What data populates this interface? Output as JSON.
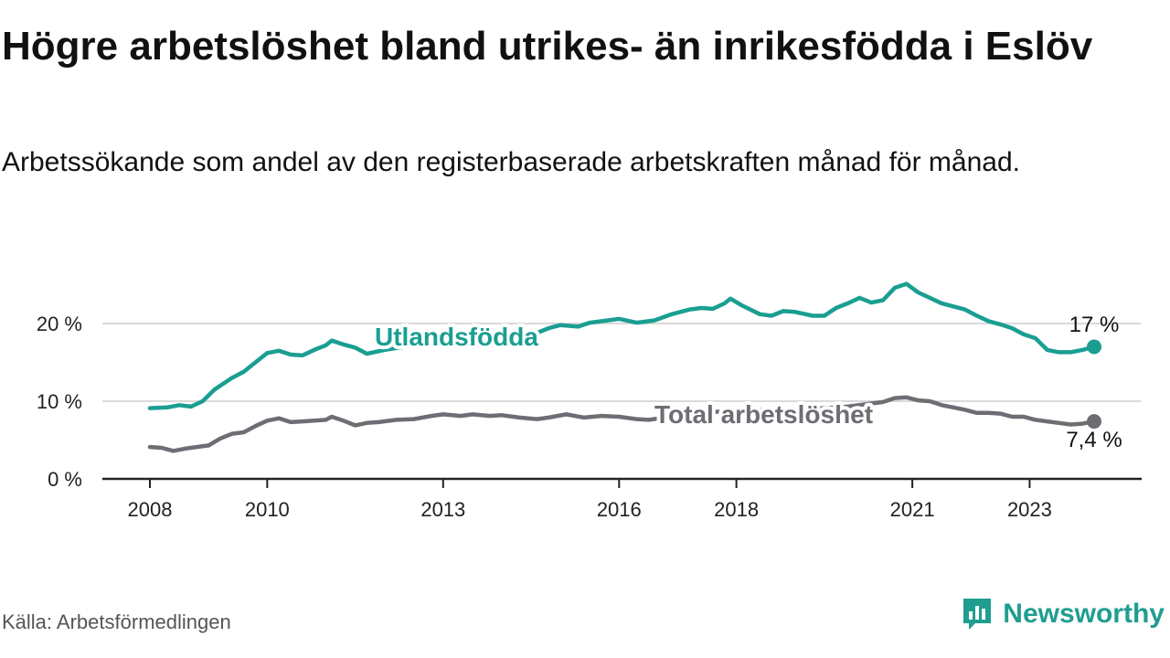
{
  "title": "Högre arbetslöshet bland utrikes- än inrikesfödda i Eslöv",
  "subtitle": "Arbetssökande som andel av den registerbaserade arbetskraften månad för månad.",
  "source": "Källa: Arbetsförmedlingen",
  "brand": {
    "name": "Newsworthy",
    "logo_icon": "newsworthy-logo-icon",
    "color": "#1f9e90"
  },
  "colors": {
    "utlandsfodda": "#1a9e92",
    "total": "#6f6c73",
    "grid": "#d9d9d9",
    "axis": "#222222"
  },
  "chart_data": {
    "type": "line",
    "title": "Högre arbetslöshet bland utrikes- än inrikesfödda i Eslöv",
    "xlabel": "",
    "ylabel": "",
    "xlim": [
      2007.8,
      2025.3
    ],
    "ylim": [
      0,
      25
    ],
    "x_ticks": [
      2008,
      2010,
      2013,
      2016,
      2018,
      2021,
      2023
    ],
    "x_tick_labels": [
      "2008",
      "2010",
      "2013",
      "2016",
      "2018",
      "2021",
      "2023"
    ],
    "y_ticks": [
      0,
      10,
      20
    ],
    "y_tick_labels": [
      "0 %",
      "10 %",
      "20 %"
    ],
    "series": [
      {
        "name": "Utlandsfödda",
        "end_label": "17 %",
        "points": [
          [
            2008.0,
            9.1
          ],
          [
            2008.3,
            9.2
          ],
          [
            2008.5,
            9.5
          ],
          [
            2008.7,
            9.3
          ],
          [
            2008.9,
            10.0
          ],
          [
            2009.1,
            11.5
          ],
          [
            2009.4,
            13.0
          ],
          [
            2009.6,
            13.8
          ],
          [
            2009.8,
            15.0
          ],
          [
            2010.0,
            16.2
          ],
          [
            2010.2,
            16.5
          ],
          [
            2010.4,
            16.0
          ],
          [
            2010.6,
            15.9
          ],
          [
            2010.8,
            16.6
          ],
          [
            2011.0,
            17.2
          ],
          [
            2011.1,
            17.8
          ],
          [
            2011.3,
            17.3
          ],
          [
            2011.5,
            16.9
          ],
          [
            2011.7,
            16.1
          ],
          [
            2012.0,
            16.6
          ],
          [
            2012.5,
            17.2
          ],
          [
            2013.0,
            17.6
          ],
          [
            2013.5,
            17.9
          ],
          [
            2014.0,
            18.2
          ],
          [
            2014.5,
            18.5
          ],
          [
            2014.8,
            19.4
          ],
          [
            2015.0,
            19.8
          ],
          [
            2015.3,
            19.6
          ],
          [
            2015.5,
            20.1
          ],
          [
            2015.8,
            20.4
          ],
          [
            2016.0,
            20.6
          ],
          [
            2016.3,
            20.1
          ],
          [
            2016.6,
            20.4
          ],
          [
            2016.9,
            21.2
          ],
          [
            2017.2,
            21.8
          ],
          [
            2017.4,
            22.0
          ],
          [
            2017.6,
            21.9
          ],
          [
            2017.8,
            22.6
          ],
          [
            2017.9,
            23.2
          ],
          [
            2018.1,
            22.3
          ],
          [
            2018.4,
            21.2
          ],
          [
            2018.6,
            21.0
          ],
          [
            2018.8,
            21.6
          ],
          [
            2019.0,
            21.5
          ],
          [
            2019.3,
            21.0
          ],
          [
            2019.5,
            21.0
          ],
          [
            2019.7,
            22.0
          ],
          [
            2019.9,
            22.6
          ],
          [
            2020.1,
            23.3
          ],
          [
            2020.3,
            22.7
          ],
          [
            2020.5,
            23.0
          ],
          [
            2020.7,
            24.6
          ],
          [
            2020.9,
            25.1
          ],
          [
            2021.1,
            24.0
          ],
          [
            2021.3,
            23.3
          ],
          [
            2021.5,
            22.6
          ],
          [
            2021.7,
            22.2
          ],
          [
            2021.9,
            21.8
          ],
          [
            2022.1,
            21.0
          ],
          [
            2022.3,
            20.3
          ],
          [
            2022.5,
            19.9
          ],
          [
            2022.7,
            19.4
          ],
          [
            2022.9,
            18.6
          ],
          [
            2023.1,
            18.1
          ],
          [
            2023.3,
            16.6
          ],
          [
            2023.5,
            16.3
          ],
          [
            2023.7,
            16.3
          ],
          [
            2023.9,
            16.6
          ],
          [
            2024.1,
            17.0
          ]
        ]
      },
      {
        "name": "Total arbetslöshet",
        "end_label": "7,4 %",
        "points": [
          [
            2008.0,
            4.1
          ],
          [
            2008.2,
            4.0
          ],
          [
            2008.4,
            3.6
          ],
          [
            2008.6,
            3.9
          ],
          [
            2008.8,
            4.1
          ],
          [
            2009.0,
            4.3
          ],
          [
            2009.2,
            5.2
          ],
          [
            2009.4,
            5.8
          ],
          [
            2009.6,
            6.0
          ],
          [
            2009.8,
            6.8
          ],
          [
            2010.0,
            7.5
          ],
          [
            2010.2,
            7.8
          ],
          [
            2010.4,
            7.3
          ],
          [
            2010.6,
            7.4
          ],
          [
            2010.8,
            7.5
          ],
          [
            2011.0,
            7.6
          ],
          [
            2011.1,
            8.0
          ],
          [
            2011.3,
            7.5
          ],
          [
            2011.5,
            6.9
          ],
          [
            2011.7,
            7.2
          ],
          [
            2011.9,
            7.3
          ],
          [
            2012.2,
            7.6
          ],
          [
            2012.5,
            7.7
          ],
          [
            2012.8,
            8.1
          ],
          [
            2013.0,
            8.3
          ],
          [
            2013.3,
            8.1
          ],
          [
            2013.5,
            8.3
          ],
          [
            2013.8,
            8.1
          ],
          [
            2014.0,
            8.2
          ],
          [
            2014.3,
            7.9
          ],
          [
            2014.6,
            7.7
          ],
          [
            2014.8,
            7.9
          ],
          [
            2015.1,
            8.3
          ],
          [
            2015.4,
            7.9
          ],
          [
            2015.7,
            8.1
          ],
          [
            2016.0,
            8.0
          ],
          [
            2016.3,
            7.7
          ],
          [
            2016.5,
            7.6
          ],
          [
            2016.8,
            7.9
          ],
          [
            2017.1,
            8.4
          ],
          [
            2017.5,
            8.6
          ],
          [
            2017.9,
            8.7
          ],
          [
            2018.3,
            8.9
          ],
          [
            2018.7,
            8.8
          ],
          [
            2019.1,
            9.0
          ],
          [
            2019.5,
            9.1
          ],
          [
            2019.9,
            9.3
          ],
          [
            2020.2,
            9.6
          ],
          [
            2020.5,
            9.9
          ],
          [
            2020.7,
            10.4
          ],
          [
            2020.9,
            10.5
          ],
          [
            2021.1,
            10.1
          ],
          [
            2021.3,
            10.0
          ],
          [
            2021.5,
            9.5
          ],
          [
            2021.7,
            9.2
          ],
          [
            2021.9,
            8.9
          ],
          [
            2022.1,
            8.5
          ],
          [
            2022.3,
            8.5
          ],
          [
            2022.5,
            8.4
          ],
          [
            2022.7,
            8.0
          ],
          [
            2022.9,
            8.0
          ],
          [
            2023.1,
            7.6
          ],
          [
            2023.3,
            7.4
          ],
          [
            2023.5,
            7.2
          ],
          [
            2023.7,
            7.0
          ],
          [
            2023.9,
            7.1
          ],
          [
            2024.1,
            7.4
          ]
        ]
      }
    ]
  }
}
